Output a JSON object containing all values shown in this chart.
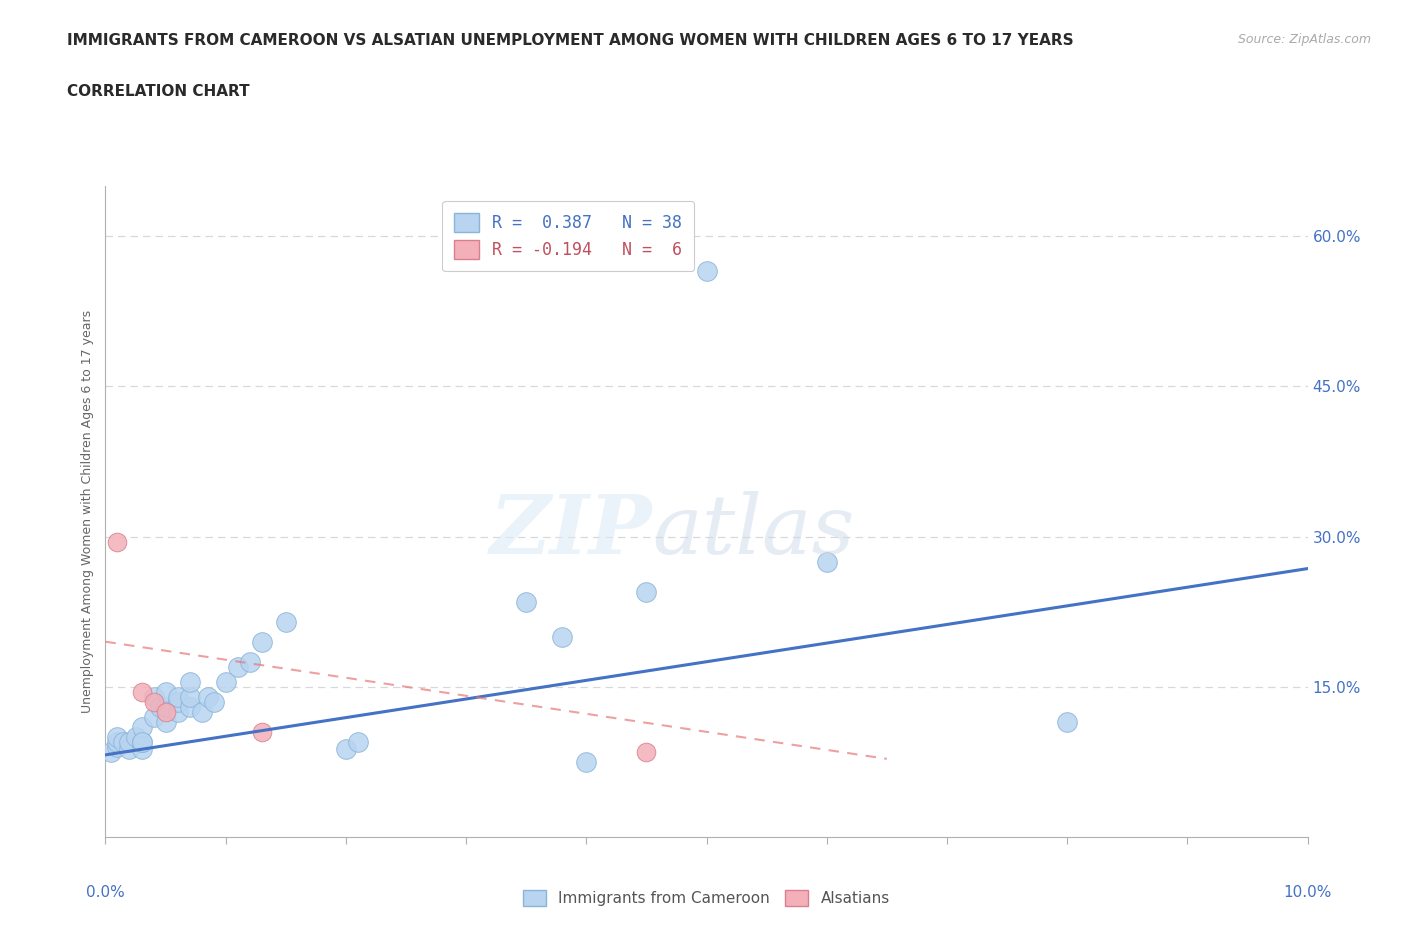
{
  "title": "IMMIGRANTS FROM CAMEROON VS ALSATIAN UNEMPLOYMENT AMONG WOMEN WITH CHILDREN AGES 6 TO 17 YEARS",
  "subtitle": "CORRELATION CHART",
  "source": "Source: ZipAtlas.com",
  "ylabel": "Unemployment Among Women with Children Ages 6 to 17 years",
  "xlim": [
    0.0,
    0.1
  ],
  "ylim": [
    0.0,
    0.65
  ],
  "ytick_values": [
    0.15,
    0.3,
    0.45,
    0.6
  ],
  "ytick_labels": [
    "15.0%",
    "30.0%",
    "45.0%",
    "60.0%"
  ],
  "background_color": "#ffffff",
  "blue_scatter_x": [
    0.0005,
    0.001,
    0.001,
    0.001,
    0.0015,
    0.002,
    0.002,
    0.0025,
    0.003,
    0.003,
    0.003,
    0.003,
    0.004,
    0.004,
    0.0045,
    0.005,
    0.005,
    0.005,
    0.006,
    0.006,
    0.006,
    0.007,
    0.007,
    0.007,
    0.008,
    0.0085,
    0.009,
    0.01,
    0.011,
    0.012,
    0.013,
    0.015,
    0.02,
    0.021,
    0.035,
    0.038,
    0.04,
    0.045,
    0.05,
    0.06,
    0.08
  ],
  "blue_scatter_y": [
    0.085,
    0.09,
    0.095,
    0.1,
    0.095,
    0.088,
    0.095,
    0.1,
    0.088,
    0.095,
    0.11,
    0.095,
    0.12,
    0.14,
    0.13,
    0.115,
    0.13,
    0.145,
    0.125,
    0.135,
    0.14,
    0.13,
    0.14,
    0.155,
    0.125,
    0.14,
    0.135,
    0.155,
    0.17,
    0.175,
    0.195,
    0.215,
    0.088,
    0.095,
    0.235,
    0.2,
    0.075,
    0.245,
    0.565,
    0.275,
    0.115
  ],
  "pink_scatter_x": [
    0.001,
    0.003,
    0.004,
    0.005,
    0.013,
    0.045
  ],
  "pink_scatter_y": [
    0.295,
    0.145,
    0.135,
    0.125,
    0.105,
    0.085
  ],
  "blue_line_x": [
    0.0,
    0.1
  ],
  "blue_line_y": [
    0.082,
    0.268
  ],
  "pink_line_x": [
    0.0,
    0.065
  ],
  "pink_line_y": [
    0.195,
    0.078
  ],
  "dot_size_blue": 200,
  "dot_size_pink": 180,
  "dot_color_blue": "#b8d4f0",
  "dot_edge_blue": "#8ab4d8",
  "dot_color_pink": "#f4b0b8",
  "dot_edge_pink": "#d88090",
  "line_color_blue": "#4472c4",
  "line_color_pink": "#e87878",
  "grid_color": "#d8d8d8",
  "axis_color": "#b0b0b0",
  "title_color": "#2a2a2a",
  "tick_label_color": "#4472c4",
  "legend_text_color1": "#4472c4",
  "legend_text_color2": "#c05060",
  "watermark_zip_color": "#ddeaf8",
  "watermark_atlas_color": "#ccdaea"
}
